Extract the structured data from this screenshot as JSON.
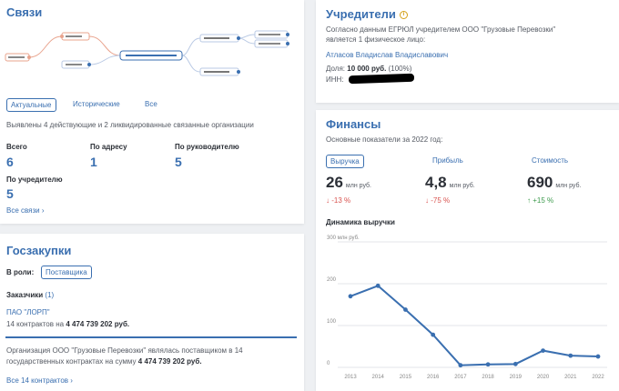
{
  "links": {
    "title": "Связи",
    "tabs": [
      "Актуальные",
      "Исторические",
      "Все"
    ],
    "summary": "Выявлены 4 действующие и 2 ликвидированные связанные организации",
    "stats": [
      {
        "label": "Всего",
        "value": "6"
      },
      {
        "label": "По адресу",
        "value": "1"
      },
      {
        "label": "По руководителю",
        "value": "5"
      },
      {
        "label": "По учредителю",
        "value": "5"
      }
    ],
    "all_link": "Все связи"
  },
  "founders": {
    "title": "Учредители",
    "desc_line1": "Согласно данным ЕГРЮЛ учредителем ООО \"Грузовые Перевозки\"",
    "desc_line2": "является 1 физическое лицо:",
    "person": "Атласов Владислав Владиславович",
    "share_label": "Доля:",
    "share_value": "10 000 руб.",
    "share_pct": "(100%)",
    "inn_label": "ИНН:"
  },
  "purchases": {
    "title": "Госзакупки",
    "role_label": "В роли:",
    "role_value": "Поставщика",
    "customers_label": "Заказчики",
    "customers_count": "(1)",
    "customer_name": "ПАО \"ЛОРП\"",
    "contracts_prefix": "14 контрактов на",
    "contracts_sum": "4 474 739 202 руб.",
    "note_line1": "Организация ООО \"Грузовые Перевозки\" являлась поставщиком в 14",
    "note_line2_prefix": "государственных контрактах на сумму",
    "note_sum": "4 474 739 202 руб.",
    "more_link": "Все 14 контрактов"
  },
  "finance": {
    "title": "Финансы",
    "subtitle": "Основные показатели за 2022 год:",
    "metrics": [
      {
        "label": "Выручка",
        "value": "26",
        "unit": "млн руб.",
        "change": "-13 %",
        "dir": "down"
      },
      {
        "label": "Прибыль",
        "value": "4,8",
        "unit": "млн руб.",
        "change": "-75 %",
        "dir": "down"
      },
      {
        "label": "Стоимость",
        "value": "690",
        "unit": "млн руб.",
        "change": "+15 %",
        "dir": "up"
      }
    ],
    "chart_title": "Динамика выручки"
  },
  "chart_data": {
    "type": "line",
    "title": "Динамика выручки",
    "x": [
      "2013",
      "2014",
      "2015",
      "2016",
      "2017",
      "2018",
      "2019",
      "2020",
      "2021",
      "2022"
    ],
    "series": [
      {
        "values": [
          170,
          195,
          138,
          78,
          5,
          7,
          8,
          40,
          28,
          26
        ]
      }
    ],
    "y_ticks": [
      "300 млн руб.",
      "200",
      "100",
      "0"
    ],
    "ylim": [
      0,
      300
    ],
    "grid": true,
    "color": "#3a6fb0"
  }
}
